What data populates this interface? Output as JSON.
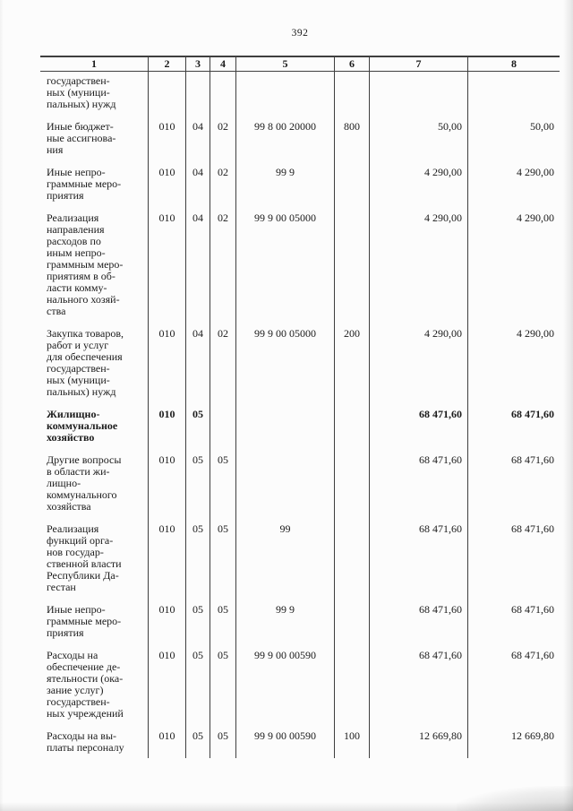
{
  "page_number": "392",
  "colors": {
    "paper": "#fcfcfc",
    "line": "#3f3f3f",
    "text": "#1b1b1b"
  },
  "table": {
    "headers": [
      "1",
      "2",
      "3",
      "4",
      "5",
      "6",
      "7",
      "8"
    ],
    "rows": [
      {
        "bold": false,
        "cells": [
          "государствен-\nных (муници-\nпальных) нужд",
          "",
          "",
          "",
          "",
          "",
          "",
          ""
        ]
      },
      {
        "bold": false,
        "cells": [
          "Иные бюджет-\nные ассигнова-\nния",
          "010",
          "04",
          "02",
          "99 8 00 20000",
          "800",
          "50,00",
          "50,00"
        ]
      },
      {
        "bold": false,
        "cells": [
          "Иные непро-\nграммные меро-\nприятия",
          "010",
          "04",
          "02",
          "99 9",
          "",
          "4 290,00",
          "4 290,00"
        ]
      },
      {
        "bold": false,
        "cells": [
          "Реализация\nнаправления\nрасходов по\nиным непро-\nграммным меро-\nприятиям в об-\nласти комму-\nнального хозяй-\nства",
          "010",
          "04",
          "02",
          "99 9 00 05000",
          "",
          "4 290,00",
          "4 290,00"
        ]
      },
      {
        "bold": false,
        "cells": [
          "Закупка товаров,\nработ и услуг\nдля обеспечения\nгосударствен-\nных (муници-\nпальных) нужд",
          "010",
          "04",
          "02",
          "99 9 00 05000",
          "200",
          "4 290,00",
          "4 290,00"
        ]
      },
      {
        "bold": true,
        "cells": [
          "Жилищно-\nкоммунальное\nхозяйство",
          "010",
          "05",
          "",
          "",
          "",
          "68 471,60",
          "68 471,60"
        ]
      },
      {
        "bold": false,
        "cells": [
          "Другие вопросы\nв области жи-\nлищно-\nкоммунального\nхозяйства",
          "010",
          "05",
          "05",
          "",
          "",
          "68 471,60",
          "68 471,60"
        ]
      },
      {
        "bold": false,
        "cells": [
          "Реализация\nфункций орга-\nнов государ-\nственной власти\nРеспублики Да-\nгестан",
          "010",
          "05",
          "05",
          "99",
          "",
          "68 471,60",
          "68 471,60"
        ]
      },
      {
        "bold": false,
        "cells": [
          "Иные непро-\nграммные меро-\nприятия",
          "010",
          "05",
          "05",
          "99 9",
          "",
          "68 471,60",
          "68 471,60"
        ]
      },
      {
        "bold": false,
        "cells": [
          "Расходы на\nобеспечение де-\nятельности (ока-\nзание услуг)\nгосударствен-\nных учреждений",
          "010",
          "05",
          "05",
          "99 9 00 00590",
          "",
          "68 471,60",
          "68 471,60"
        ]
      },
      {
        "bold": false,
        "cells": [
          "Расходы на вы-\nплаты персоналу",
          "010",
          "05",
          "05",
          "99 9 00 00590",
          "100",
          "12 669,80",
          "12 669,80"
        ]
      }
    ]
  }
}
